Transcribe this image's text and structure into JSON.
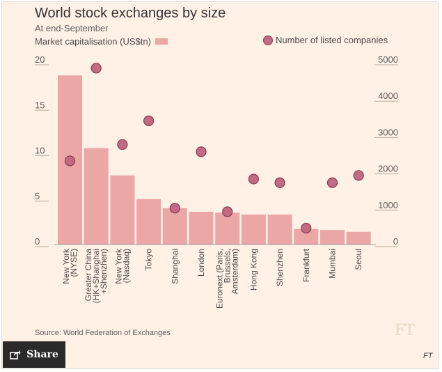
{
  "chart_data": {
    "type": "bar",
    "title": "World stock exchanges by size",
    "subtitle": "At end-September",
    "series": [
      {
        "name": "Market capitalisation (US$tn)",
        "kind": "bar",
        "axis": "left",
        "values": [
          18.6,
          10.6,
          7.6,
          5.0,
          4.0,
          3.6,
          3.5,
          3.3,
          3.3,
          1.7,
          1.6,
          1.4
        ]
      },
      {
        "name": "Number of listed companies",
        "kind": "scatter",
        "axis": "right",
        "values": [
          2300,
          4850,
          2750,
          3400,
          1000,
          2550,
          900,
          1800,
          1700,
          450,
          1700,
          1900
        ]
      }
    ],
    "categories": [
      [
        "New York",
        "(NYSE)"
      ],
      [
        "Greater China",
        "(HK+Shanghai",
        "+Shenzhen)"
      ],
      [
        "New York",
        "(Nasdaq)"
      ],
      [
        "Tokyo"
      ],
      [
        "Shanghai"
      ],
      [
        "London"
      ],
      [
        "Euronext (Paris,",
        "Brussels,",
        "Amsterdam)"
      ],
      [
        "Hong Kong"
      ],
      [
        "Shenzhen"
      ],
      [
        "Frankfurt"
      ],
      [
        "Mumbai"
      ],
      [
        "Seoul"
      ]
    ],
    "left_axis": {
      "ylim": [
        0,
        20
      ],
      "ticks": [
        0,
        5,
        10,
        15,
        20
      ],
      "tick_labels": [
        "0",
        "5",
        "10",
        "15",
        "20"
      ]
    },
    "right_axis": {
      "ylim": [
        0,
        5000
      ],
      "ticks": [
        0,
        1000,
        2000,
        3000,
        4000,
        5000
      ],
      "tick_labels": [
        "0",
        "1000",
        "2000",
        "3000",
        "4000",
        "5000"
      ]
    },
    "grid": false,
    "legend": "top"
  },
  "legend": {
    "left_label": "Market capitalisation (US$tn)",
    "right_label": "Number of listed companies"
  },
  "source": "Source: World Federation of Exchanges",
  "watermark": "FT",
  "share_button": {
    "label": "Share",
    "icon": "share-icon"
  },
  "footer_logo": "FT",
  "colors": {
    "background": "#fff1e5",
    "bar": "#eba6a6",
    "dot_fill": "#c06b82",
    "dot_stroke": "#8a3a52"
  }
}
